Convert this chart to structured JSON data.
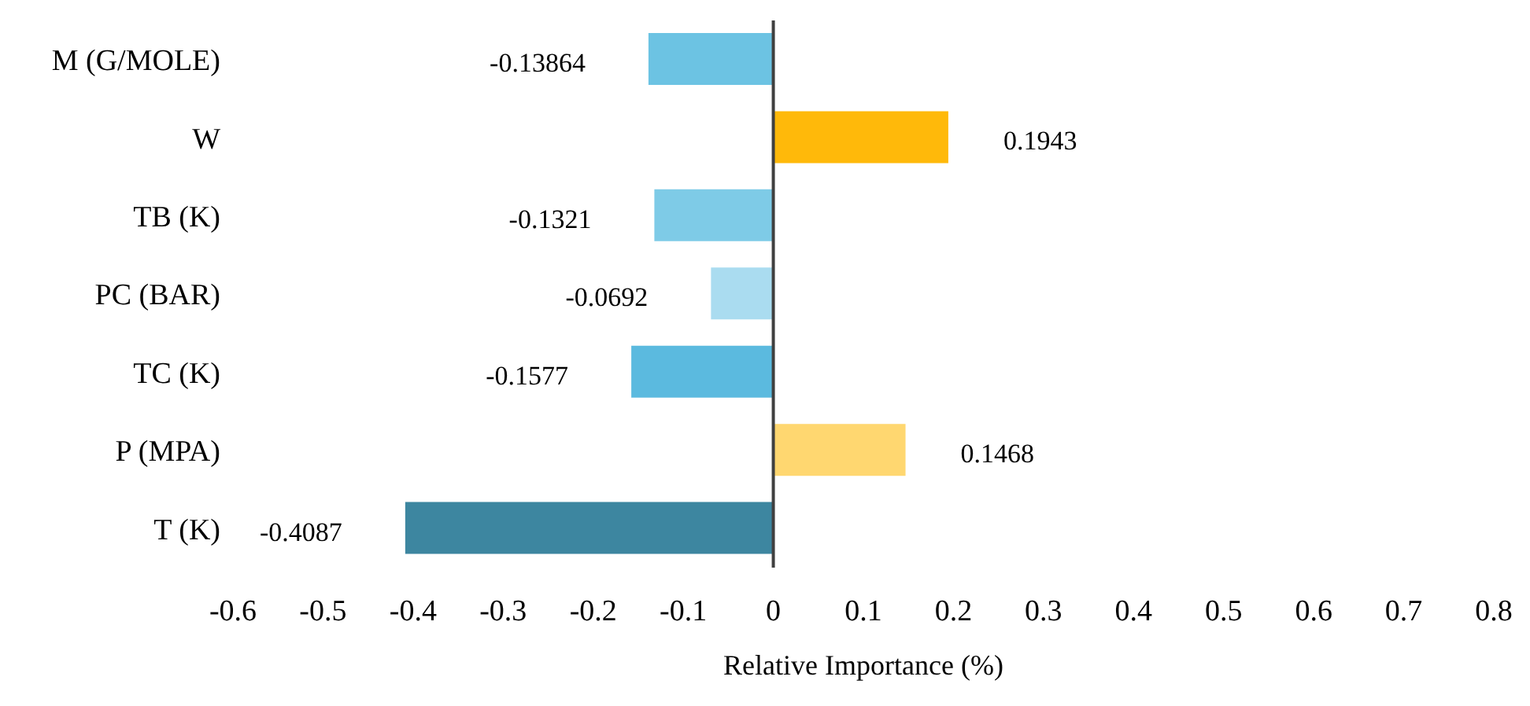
{
  "chart_data": {
    "type": "bar",
    "orientation": "horizontal",
    "xlabel": "Relative Importance (%)",
    "categories": [
      "M (G/MOLE)",
      "W",
      "TB (K)",
      "PC (BAR)",
      "TC (K)",
      "P (MPA)",
      "T (K)"
    ],
    "values": [
      -0.13864,
      0.1943,
      -0.1321,
      -0.0692,
      -0.1577,
      0.1468,
      -0.4087
    ],
    "colors": [
      "#6cc3e3",
      "#ffb90a",
      "#7ecbe7",
      "#aadcf0",
      "#5bbadf",
      "#ffd770",
      "#3d86a0"
    ],
    "xlim": [
      -0.6,
      0.8
    ],
    "xticks": [
      -0.6,
      -0.5,
      -0.4,
      -0.3,
      -0.2,
      -0.1,
      0,
      0.1,
      0.2,
      0.3,
      0.4,
      0.5,
      0.6,
      0.7,
      0.8
    ],
    "ref_lines": [
      {
        "axis": "x",
        "value": 0,
        "color": "#404040"
      }
    ],
    "data_labels": true,
    "grid": false,
    "legend": false
  }
}
